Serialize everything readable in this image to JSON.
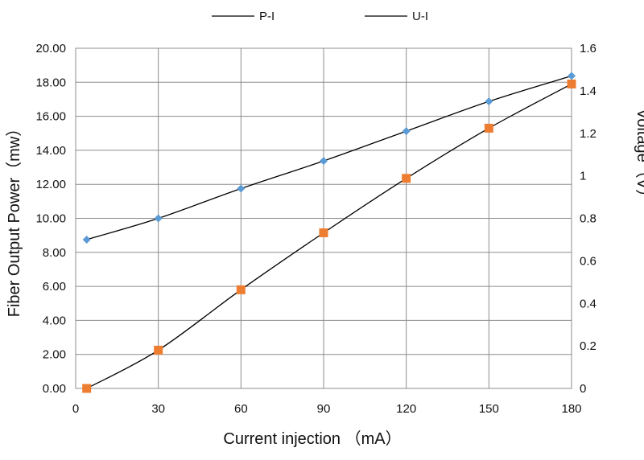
{
  "chart_data": {
    "type": "scatter",
    "title": "",
    "xlabel": "Current injection （mA）",
    "ylabel_left": "Fiber Output Power（mw）",
    "ylabel_right": "Voltage（V）",
    "xlim": [
      0,
      180
    ],
    "x_ticks": [
      "0",
      "30",
      "60",
      "90",
      "120",
      "150",
      "180"
    ],
    "ylim_left": [
      0,
      20
    ],
    "y_left_ticks": [
      "0.00",
      "2.00",
      "4.00",
      "6.00",
      "8.00",
      "10.00",
      "12.00",
      "14.00",
      "16.00",
      "18.00",
      "20.00"
    ],
    "ylim_right": [
      0,
      1.6
    ],
    "y_right_ticks": [
      "0",
      "0.2",
      "0.4",
      "0.6",
      "0.8",
      "1",
      "1.2",
      "1.4",
      "1.6"
    ],
    "grid": true,
    "legend_position": "top",
    "series": [
      {
        "name": "P-I",
        "axis": "left",
        "marker": "square",
        "color": "#ed7d31",
        "x": [
          4,
          30,
          60,
          90,
          120,
          150,
          180
        ],
        "y": [
          0.0,
          2.25,
          5.8,
          9.15,
          12.35,
          15.3,
          17.9
        ]
      },
      {
        "name": "U-I",
        "axis": "right",
        "marker": "diamond",
        "color": "#5b9bd5",
        "x": [
          4,
          30,
          60,
          90,
          120,
          150,
          180
        ],
        "y": [
          0.7,
          0.8,
          0.94,
          1.07,
          1.21,
          1.35,
          1.47
        ]
      }
    ]
  }
}
